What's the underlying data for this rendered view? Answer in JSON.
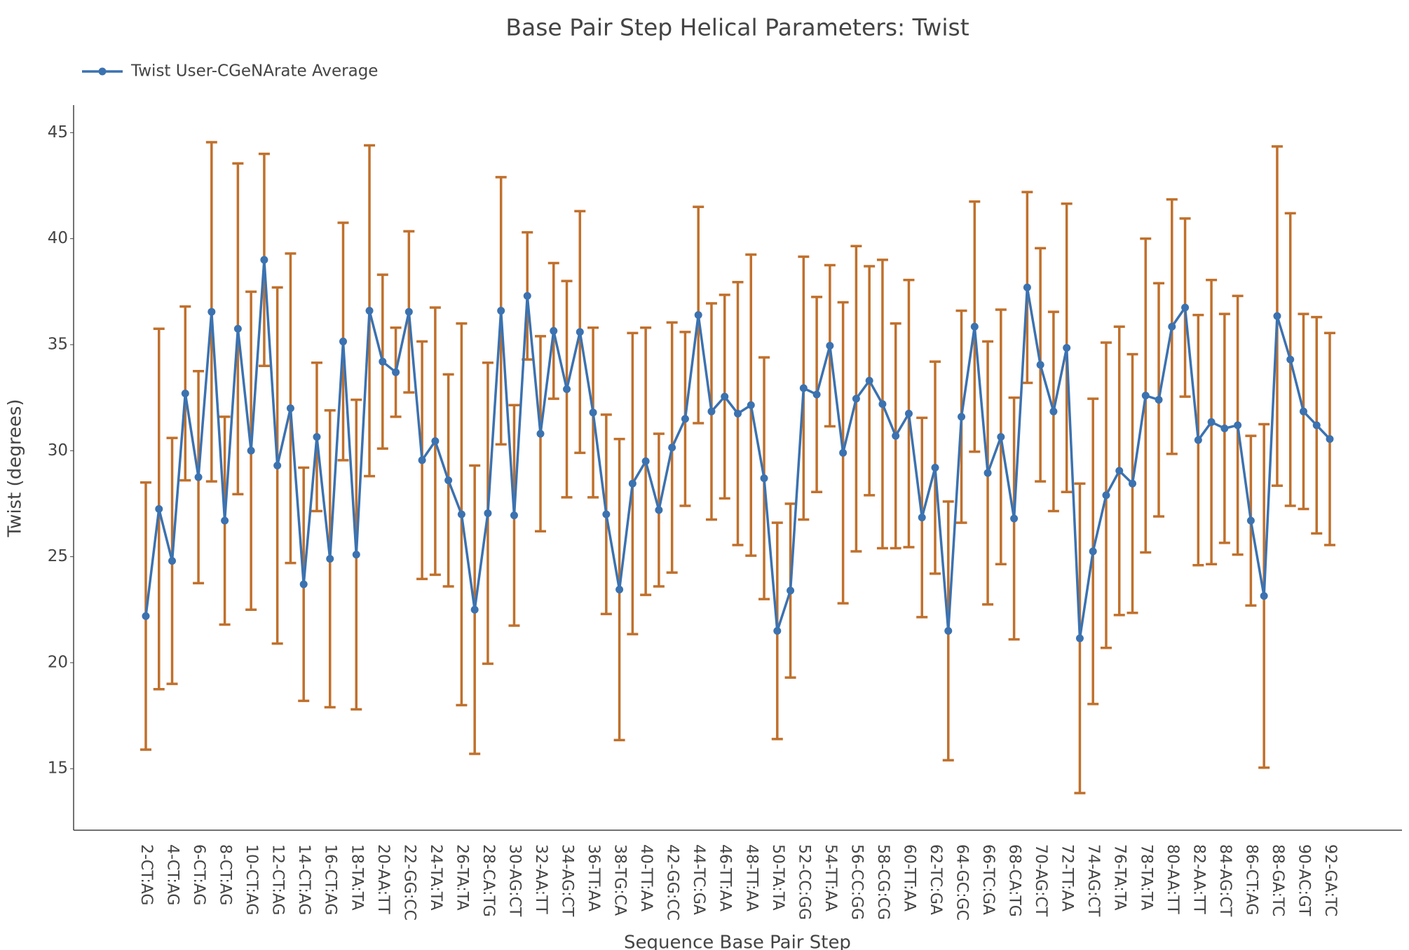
{
  "chart_data": {
    "type": "line",
    "title": "Base Pair Step Helical Parameters: Twist",
    "x_label": "Sequence Base Pair Step",
    "y_label": "Twist (degrees)",
    "categories": [
      "2-CT:AG",
      null,
      "4-CT:AG",
      null,
      "6-CT:AG",
      null,
      "8-CT:AG",
      null,
      "10-CT:AG",
      null,
      "12-CT:AG",
      null,
      "14-CT:AG",
      null,
      "16-CT:AG",
      null,
      "18-TA:TA",
      null,
      "20-AA:TT",
      null,
      "22-GG:CC",
      null,
      "24-TA:TA",
      null,
      "26-TA:TA",
      null,
      "28-CA:TG",
      null,
      "30-AG:CT",
      null,
      "32-AA:TT",
      null,
      "34-AG:CT",
      null,
      "36-TT:AA",
      null,
      "38-TG:CA",
      null,
      "40-TT:AA",
      null,
      "42-GG:CC",
      null,
      "44-TC:GA",
      null,
      "46-TT:AA",
      null,
      "48-TT:AA",
      null,
      "50-TA:TA",
      null,
      "52-CC:GG",
      null,
      "54-TT:AA",
      null,
      "56-CC:GG",
      null,
      "58-CG:CG",
      null,
      "60-TT:AA",
      null,
      "62-TC:GA",
      null,
      "64-GC:GC",
      null,
      "66-TC:GA",
      null,
      "68-CA:TG",
      null,
      "70-AG:CT",
      null,
      "72-TT:AA",
      null,
      "74-AG:CT",
      null,
      "76-TA:TA",
      null,
      "78-TA:TA",
      null,
      "80-AA:TT",
      null,
      "82-AA:TT",
      null,
      "84-AG:CT",
      null,
      "86-CT:AG",
      null,
      "88-GA:TC",
      null,
      "90-AC:GT",
      null,
      "92-GA:TC"
    ],
    "series": [
      {
        "name": "Twist User-CGeNArate Average",
        "color": "#3b72b0",
        "error_color": "#c0702c",
        "values": [
          22.2,
          27.25,
          24.8,
          32.7,
          28.75,
          36.55,
          26.7,
          35.75,
          30.0,
          39.0,
          29.3,
          32.0,
          23.7,
          30.65,
          24.9,
          35.15,
          25.1,
          36.6,
          34.2,
          33.7,
          36.55,
          29.55,
          30.45,
          28.6,
          27.0,
          22.5,
          27.05,
          36.6,
          26.95,
          37.3,
          30.8,
          35.65,
          32.9,
          35.6,
          31.8,
          27.0,
          23.45,
          28.45,
          29.5,
          27.2,
          30.15,
          31.5,
          36.4,
          31.85,
          32.55,
          31.75,
          32.15,
          28.7,
          21.5,
          23.4,
          32.95,
          32.65,
          34.95,
          29.9,
          32.45,
          33.3,
          32.2,
          30.7,
          31.75,
          26.85,
          29.2,
          21.5,
          31.6,
          35.85,
          28.95,
          30.65,
          26.8,
          37.7,
          34.05,
          31.85,
          34.85,
          21.15,
          25.25,
          27.9,
          29.05,
          28.45,
          32.6,
          32.4,
          35.85,
          36.75,
          30.5,
          31.35,
          31.05,
          31.2,
          26.7,
          23.15,
          36.35,
          34.3,
          31.85,
          31.2,
          30.55
        ],
        "errors": [
          6.3,
          8.5,
          5.8,
          4.1,
          5.0,
          8.0,
          4.9,
          7.8,
          7.5,
          5.0,
          8.4,
          7.3,
          5.5,
          3.5,
          7.0,
          5.6,
          7.3,
          7.8,
          4.1,
          2.1,
          3.8,
          5.6,
          6.3,
          5.0,
          9.0,
          6.8,
          7.1,
          6.3,
          5.2,
          3.0,
          4.6,
          3.2,
          5.1,
          5.7,
          4.0,
          4.7,
          7.1,
          7.1,
          6.3,
          3.6,
          5.9,
          4.1,
          5.1,
          5.1,
          4.8,
          6.2,
          7.1,
          5.7,
          5.1,
          4.1,
          6.2,
          4.6,
          3.8,
          7.1,
          7.2,
          5.4,
          6.8,
          5.3,
          6.3,
          4.7,
          5.0,
          6.1,
          5.0,
          5.9,
          6.2,
          6.0,
          5.7,
          4.5,
          5.5,
          4.7,
          6.8,
          7.3,
          7.2,
          7.2,
          6.8,
          6.1,
          7.4,
          5.5,
          6.0,
          4.2,
          5.9,
          6.7,
          5.4,
          6.1,
          4.0,
          8.1,
          8.0,
          6.9,
          4.6,
          5.1,
          5.0
        ]
      }
    ],
    "ylim": [
      12.1,
      46.3
    ],
    "yticks": [
      15,
      20,
      25,
      30,
      35,
      40,
      45
    ],
    "grid": false,
    "legend": "top-left"
  }
}
